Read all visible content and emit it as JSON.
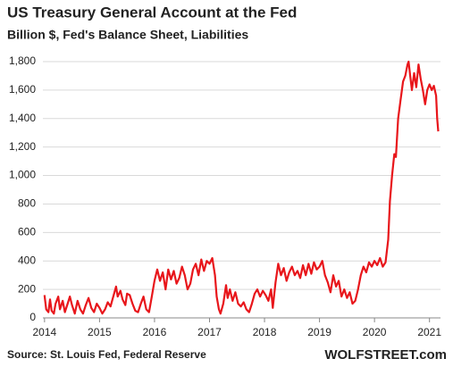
{
  "chart_data": {
    "type": "line",
    "title": "US Treasury General Account at the Fed",
    "subtitle": "Billion $, Fed's Balance Sheet, Liabilities",
    "source": "Source: St. Louis Fed, Federal Reserve",
    "credit": "WOLFSTREET.com",
    "color": "#e8161b",
    "grid": true,
    "xlim": [
      2013.97,
      2021.2
    ],
    "xticks": [
      2014,
      2015,
      2016,
      2017,
      2018,
      2019,
      2020,
      2021
    ],
    "ylim": [
      0,
      1800
    ],
    "yticks": [
      0,
      200,
      400,
      600,
      800,
      {
        "value": 1000,
        "label": "1,000"
      },
      {
        "value": 1200,
        "label": "1,200"
      },
      {
        "value": 1400,
        "label": "1,400"
      },
      {
        "value": 1600,
        "label": "1,600"
      },
      {
        "value": 1800,
        "label": "1,800"
      }
    ],
    "x": [
      2014.0,
      2014.03,
      2014.07,
      2014.1,
      2014.13,
      2014.17,
      2014.2,
      2014.25,
      2014.28,
      2014.33,
      2014.37,
      2014.42,
      2014.46,
      2014.5,
      2014.55,
      2014.6,
      2014.65,
      2014.7,
      2014.75,
      2014.8,
      2014.85,
      2014.9,
      2014.95,
      2015.0,
      2015.05,
      2015.1,
      2015.15,
      2015.2,
      2015.25,
      2015.3,
      2015.33,
      2015.38,
      2015.42,
      2015.47,
      2015.5,
      2015.55,
      2015.6,
      2015.65,
      2015.7,
      2015.75,
      2015.8,
      2015.85,
      2015.9,
      2015.95,
      2016.0,
      2016.05,
      2016.1,
      2016.15,
      2016.2,
      2016.25,
      2016.3,
      2016.35,
      2016.4,
      2016.45,
      2016.5,
      2016.55,
      2016.6,
      2016.65,
      2016.7,
      2016.75,
      2016.8,
      2016.85,
      2016.9,
      2016.95,
      2017.0,
      2017.05,
      2017.1,
      2017.13,
      2017.17,
      2017.2,
      2017.25,
      2017.3,
      2017.33,
      2017.37,
      2017.42,
      2017.47,
      2017.52,
      2017.57,
      2017.62,
      2017.67,
      2017.72,
      2017.77,
      2017.82,
      2017.87,
      2017.92,
      2017.97,
      2018.02,
      2018.07,
      2018.12,
      2018.15,
      2018.2,
      2018.25,
      2018.3,
      2018.35,
      2018.4,
      2018.45,
      2018.5,
      2018.55,
      2018.6,
      2018.65,
      2018.7,
      2018.75,
      2018.8,
      2018.85,
      2018.9,
      2018.95,
      2019.0,
      2019.05,
      2019.1,
      2019.15,
      2019.2,
      2019.25,
      2019.3,
      2019.35,
      2019.4,
      2019.45,
      2019.5,
      2019.55,
      2019.6,
      2019.65,
      2019.7,
      2019.75,
      2019.8,
      2019.85,
      2019.9,
      2019.95,
      2020.0,
      2020.05,
      2020.1,
      2020.15,
      2020.2,
      2020.25,
      2020.28,
      2020.32,
      2020.36,
      2020.39,
      2020.43,
      2020.47,
      2020.52,
      2020.56,
      2020.6,
      2020.62,
      2020.65,
      2020.68,
      2020.72,
      2020.76,
      2020.8,
      2020.84,
      2020.88,
      2020.92,
      2020.96,
      2021.0,
      2021.04,
      2021.08,
      2021.12,
      2021.14,
      2021.16
    ],
    "values": [
      160,
      60,
      40,
      130,
      50,
      30,
      100,
      150,
      60,
      120,
      40,
      100,
      150,
      90,
      30,
      120,
      60,
      30,
      90,
      140,
      70,
      40,
      100,
      70,
      30,
      60,
      110,
      80,
      150,
      220,
      150,
      190,
      130,
      90,
      170,
      160,
      100,
      50,
      40,
      100,
      150,
      60,
      40,
      150,
      260,
      340,
      260,
      320,
      200,
      340,
      270,
      330,
      240,
      280,
      360,
      300,
      200,
      240,
      340,
      380,
      300,
      410,
      330,
      400,
      380,
      420,
      300,
      150,
      60,
      30,
      100,
      230,
      140,
      200,
      120,
      180,
      100,
      80,
      110,
      60,
      40,
      100,
      170,
      200,
      150,
      190,
      160,
      120,
      200,
      70,
      250,
      380,
      300,
      350,
      260,
      320,
      360,
      300,
      330,
      280,
      370,
      300,
      380,
      310,
      390,
      340,
      360,
      400,
      300,
      250,
      180,
      300,
      220,
      260,
      150,
      200,
      140,
      180,
      100,
      120,
      200,
      300,
      360,
      320,
      390,
      360,
      400,
      370,
      420,
      360,
      390,
      550,
      820,
      1000,
      1150,
      1130,
      1400,
      1520,
      1660,
      1700,
      1780,
      1800,
      1700,
      1600,
      1720,
      1620,
      1780,
      1680,
      1600,
      1500,
      1600,
      1640,
      1600,
      1630,
      1560,
      1400,
      1310
    ]
  }
}
